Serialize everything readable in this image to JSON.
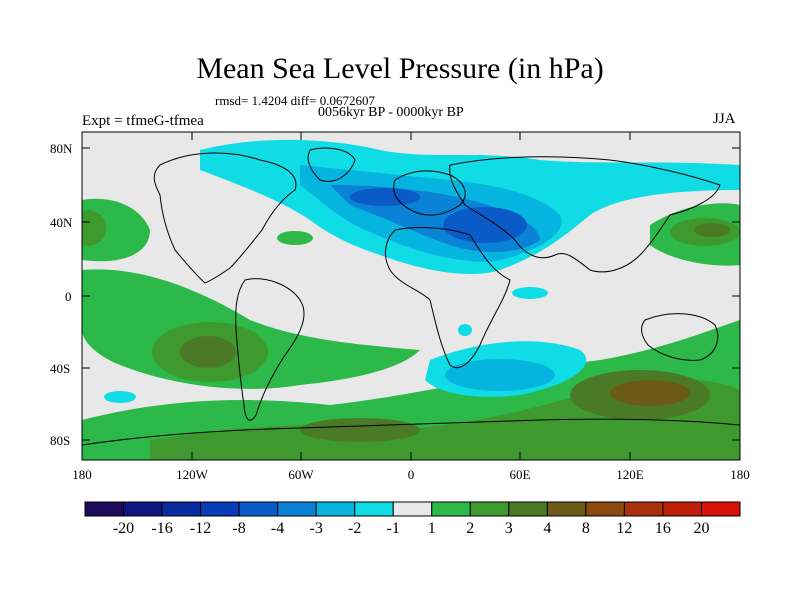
{
  "header": {
    "title": "Mean Sea Level Pressure (in hPa)",
    "stats": "rmsd= 1.4204 diff= 0.0672607",
    "period": "0056kyr BP - 0000kyr BP",
    "experiment": "Expt = tfmeG-tfmea",
    "season": "JJA"
  },
  "map": {
    "y_axis_labels": [
      "80N",
      "40N",
      "0",
      "40S",
      "80S"
    ],
    "x_axis_labels": [
      "180",
      "120W",
      "60W",
      "0",
      "60E",
      "120E",
      "180"
    ],
    "colors": {
      "background": "#e8e8e8",
      "land_outline": "#000000"
    }
  },
  "colorbar": {
    "labels": [
      "-20",
      "-16",
      "-12",
      "-8",
      "-4",
      "-3",
      "-2",
      "-1",
      "1",
      "2",
      "3",
      "4",
      "8",
      "12",
      "16",
      "20"
    ],
    "colors": [
      "#1e0a5a",
      "#0c1780",
      "#0a2aa0",
      "#0a3cb8",
      "#0a5bc8",
      "#0a82d6",
      "#05b5df",
      "#10dce6",
      "#e8e8e8",
      "#2db84a",
      "#3e9a2e",
      "#4b7a26",
      "#6b5a18",
      "#8a4a10",
      "#a8300a",
      "#c01e0a",
      "#d81208"
    ]
  }
}
